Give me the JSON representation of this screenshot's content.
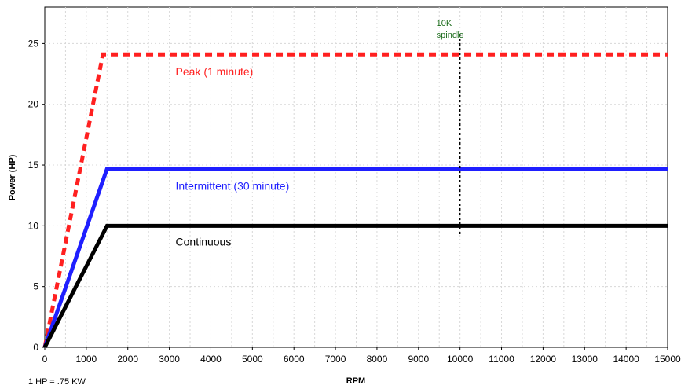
{
  "chart_data": {
    "type": "line",
    "xlabel": "RPM",
    "ylabel": "Power (HP)",
    "xlim": [
      0,
      15000
    ],
    "ylim": [
      0,
      28
    ],
    "x_ticks": [
      0,
      1000,
      2000,
      3000,
      4000,
      5000,
      6000,
      7000,
      8000,
      9000,
      10000,
      11000,
      12000,
      13000,
      14000,
      15000
    ],
    "y_ticks": [
      0,
      5,
      10,
      15,
      20,
      25
    ],
    "grid": true,
    "series": [
      {
        "name": "Peak (1 minute)",
        "color": "#ff2020",
        "style": "dashed",
        "x": [
          0,
          1400,
          15000
        ],
        "y": [
          0,
          24.1,
          24.1
        ]
      },
      {
        "name": "Intermittent (30 minute)",
        "color": "#1f1fff",
        "style": "solid",
        "x": [
          0,
          1500,
          15000
        ],
        "y": [
          0,
          14.7,
          14.7
        ]
      },
      {
        "name": "Continuous",
        "color": "#000000",
        "style": "solid",
        "x": [
          0,
          1500,
          15000
        ],
        "y": [
          0,
          10.0,
          10.0
        ]
      }
    ],
    "annotations": [
      {
        "text": "Peak (1 minute)",
        "x": 3150,
        "y": 22.7,
        "color": "#ff2020"
      },
      {
        "text": "Intermittent (30 minute)",
        "x": 3150,
        "y": 13.3,
        "color": "#1f1fff"
      },
      {
        "text": "Continuous",
        "x": 3150,
        "y": 8.7,
        "color": "#000000"
      }
    ],
    "reference_line": {
      "x": 10000,
      "y_range": [
        9.2,
        25.8
      ],
      "color": "#000000",
      "style": "dashed",
      "label_lines": [
        "10K",
        "spindle"
      ],
      "label_color": "#1a6b1a"
    },
    "note": "1 HP = .75 KW"
  }
}
